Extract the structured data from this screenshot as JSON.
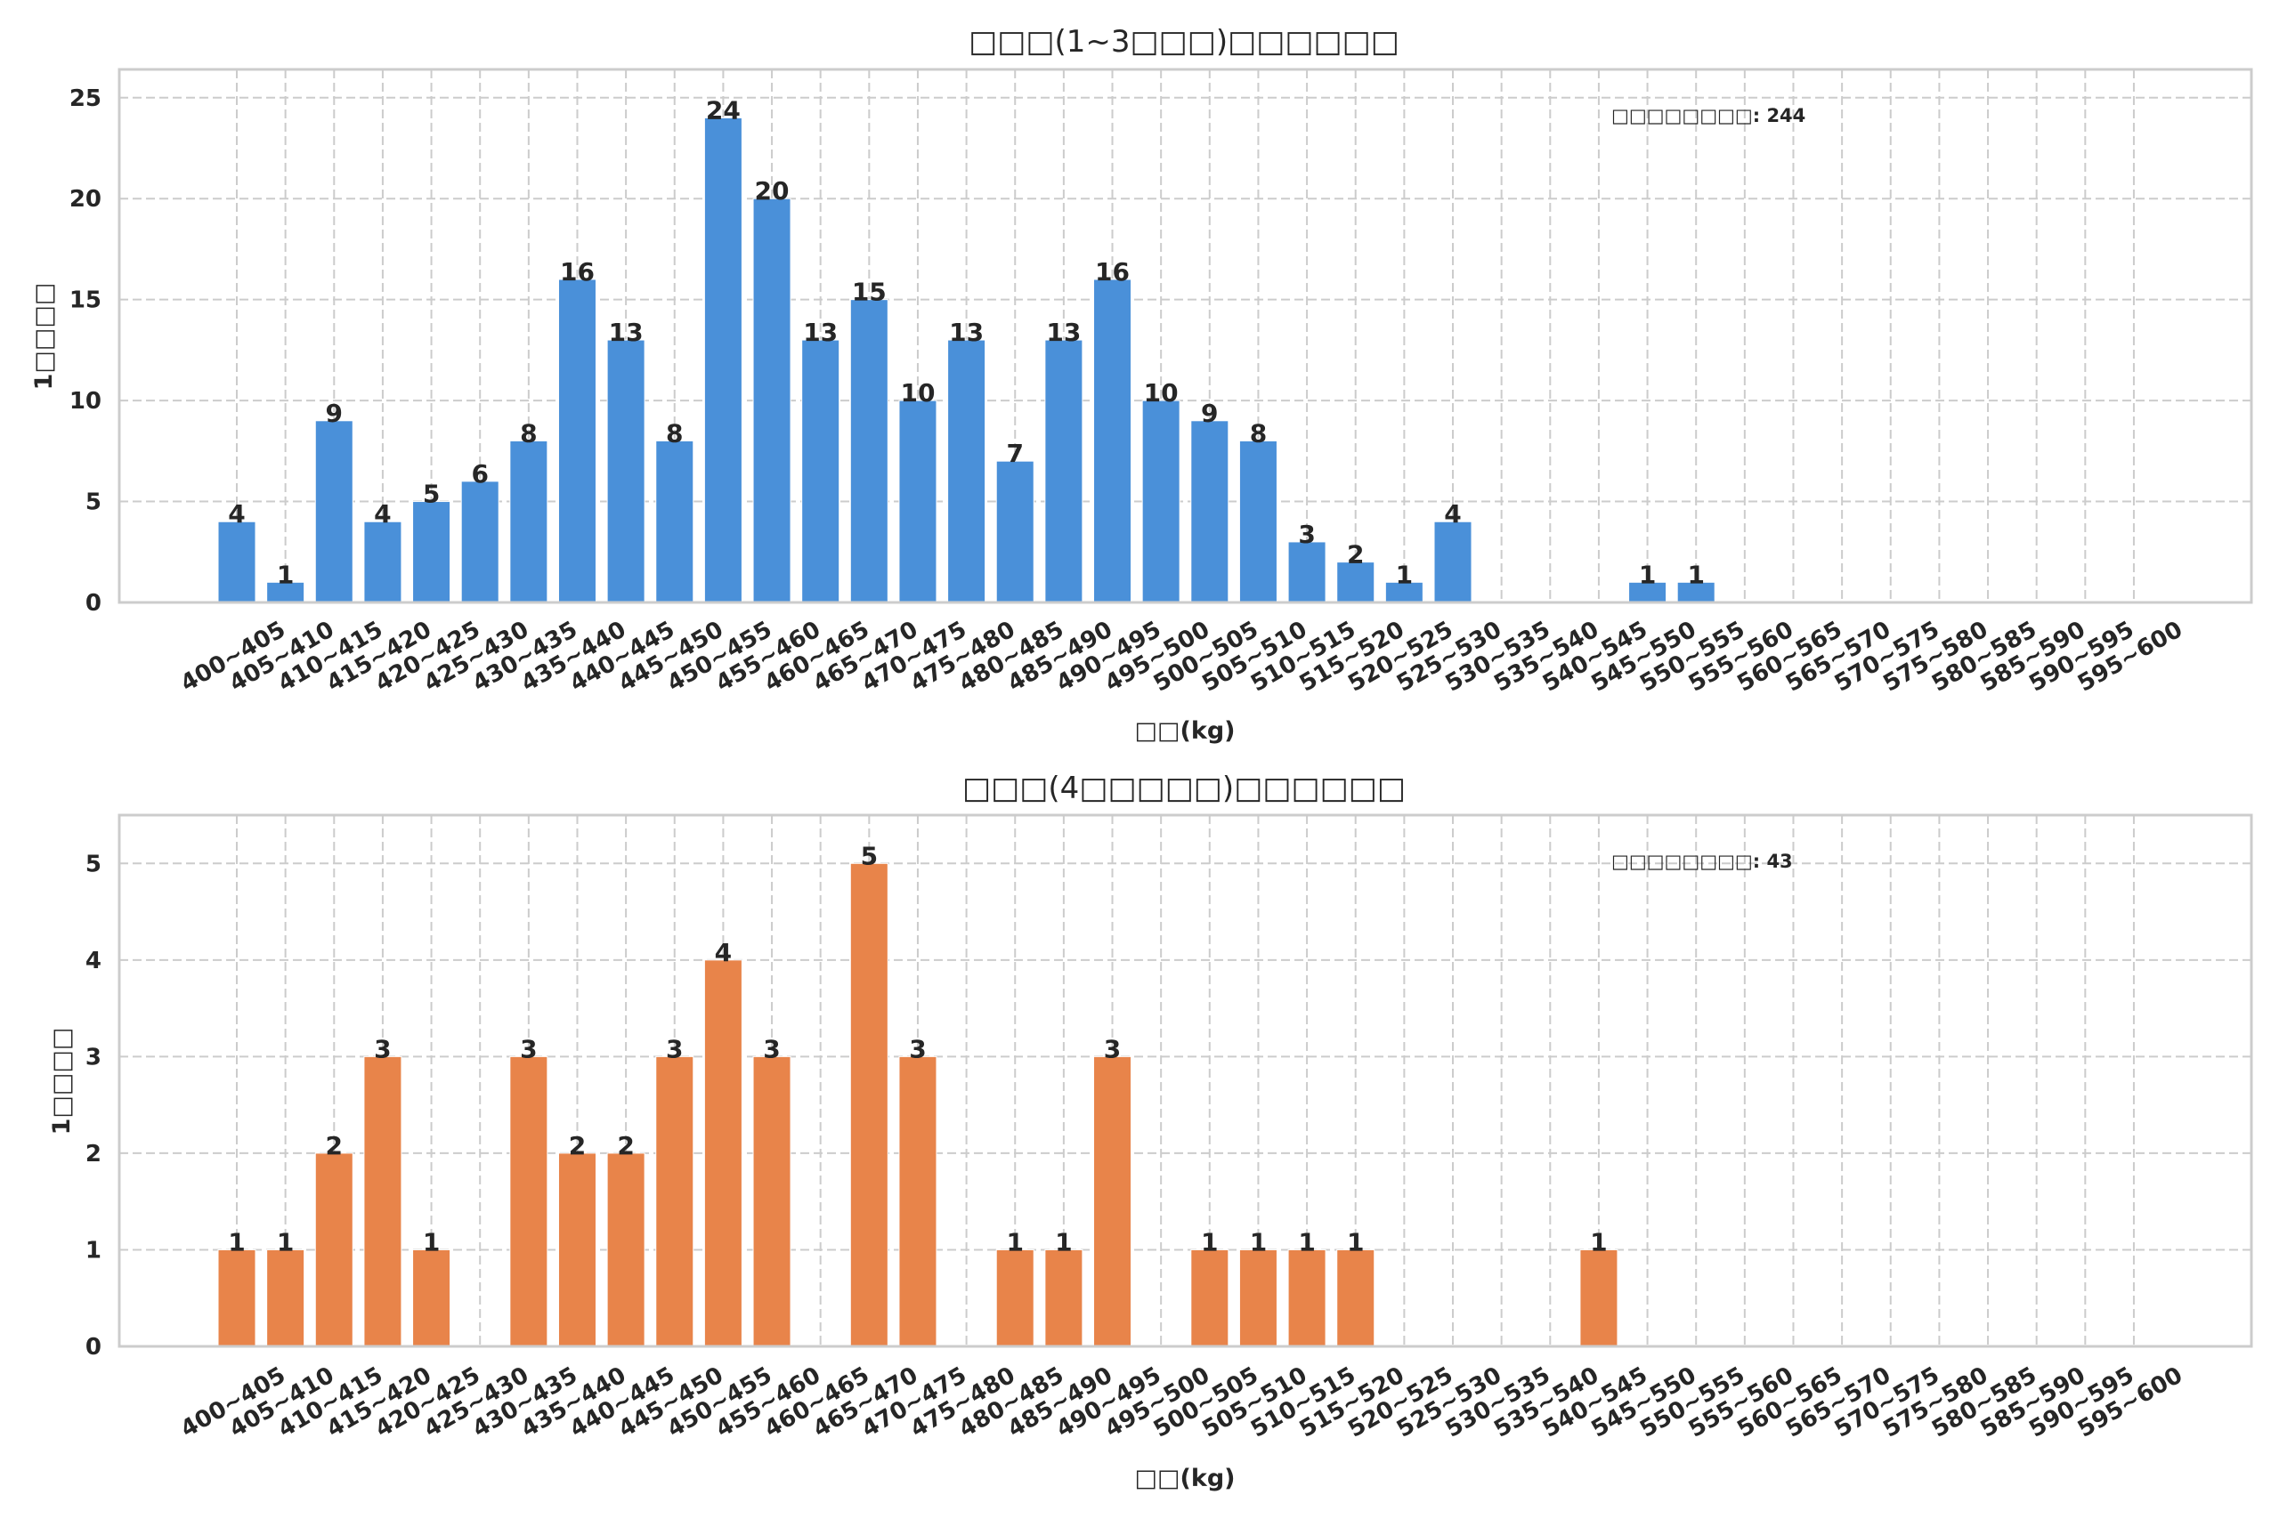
{
  "chart_data": [
    {
      "type": "bar",
      "title": "□□□(1~3□□□)□□□□□□",
      "xlabel": "□□(kg)",
      "ylabel": "1□□□□",
      "ylim": [
        0,
        26.4
      ],
      "yticks": [
        0,
        5,
        10,
        15,
        20,
        25
      ],
      "grid": true,
      "color": "#4a90d9",
      "annotation": "□□□□□□□□: 244",
      "annotation_position": "top-right",
      "categories": [
        "400~405",
        "405~410",
        "410~415",
        "415~420",
        "420~425",
        "425~430",
        "430~435",
        "435~440",
        "440~445",
        "445~450",
        "450~455",
        "455~460",
        "460~465",
        "465~470",
        "470~475",
        "475~480",
        "480~485",
        "485~490",
        "490~495",
        "495~500",
        "500~505",
        "505~510",
        "510~515",
        "515~520",
        "520~525",
        "525~530",
        "530~535",
        "535~540",
        "540~545",
        "545~550",
        "550~555",
        "555~560",
        "560~565",
        "565~570",
        "570~575",
        "575~580",
        "580~585",
        "585~590",
        "590~595",
        "595~600"
      ],
      "values": [
        4,
        1,
        9,
        4,
        5,
        6,
        8,
        16,
        13,
        8,
        24,
        20,
        13,
        15,
        10,
        13,
        7,
        13,
        16,
        10,
        9,
        8,
        3,
        2,
        1,
        4,
        0,
        0,
        0,
        1,
        1,
        0,
        0,
        0,
        0,
        0,
        0,
        0,
        0,
        0
      ]
    },
    {
      "type": "bar",
      "title": "□□□(4□□□□□)□□□□□□",
      "xlabel": "□□(kg)",
      "ylabel": "1□□□□",
      "ylim": [
        0,
        5.5
      ],
      "yticks": [
        0,
        1,
        2,
        3,
        4,
        5
      ],
      "grid": true,
      "color": "#e8844a",
      "annotation": "□□□□□□□□: 43",
      "annotation_position": "top-right",
      "categories": [
        "400~405",
        "405~410",
        "410~415",
        "415~420",
        "420~425",
        "425~430",
        "430~435",
        "435~440",
        "440~445",
        "445~450",
        "450~455",
        "455~460",
        "460~465",
        "465~470",
        "470~475",
        "475~480",
        "480~485",
        "485~490",
        "490~495",
        "495~500",
        "500~505",
        "505~510",
        "510~515",
        "515~520",
        "520~525",
        "525~530",
        "530~535",
        "535~540",
        "540~545",
        "545~550",
        "550~555",
        "555~560",
        "560~565",
        "565~570",
        "570~575",
        "575~580",
        "580~585",
        "585~590",
        "590~595",
        "595~600"
      ],
      "values": [
        1,
        1,
        2,
        3,
        1,
        0,
        3,
        2,
        2,
        3,
        4,
        3,
        0,
        5,
        3,
        0,
        1,
        1,
        3,
        0,
        1,
        1,
        1,
        1,
        0,
        0,
        0,
        0,
        1,
        0,
        0,
        0,
        0,
        0,
        0,
        0,
        0,
        0,
        0,
        0
      ]
    }
  ]
}
